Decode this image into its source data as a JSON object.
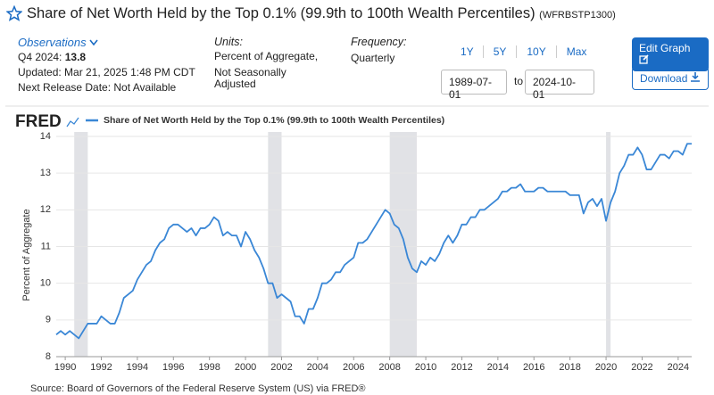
{
  "header": {
    "title": "Share of Net Worth Held by the Top 0.1% (99.9th to 100th Wealth Percentiles)",
    "series_id": "(WFRBSTP1300)"
  },
  "observations": {
    "label": "Observations",
    "latest_label": "Q4 2024:",
    "latest_value": "13.8",
    "updated": "Updated: Mar 21, 2025 1:48 PM CDT",
    "next_release": "Next Release Date: Not Available"
  },
  "units": {
    "label": "Units:",
    "lines": [
      "Percent of Aggregate,",
      "Not Seasonally",
      "Adjusted"
    ]
  },
  "frequency": {
    "label": "Frequency:",
    "value": "Quarterly"
  },
  "range_buttons": [
    "1Y",
    "5Y",
    "10Y",
    "Max"
  ],
  "dates": {
    "start": "1989-07-01",
    "separator": "to",
    "end": "2024-10-01"
  },
  "actions": {
    "edit": "Edit Graph",
    "download": "Download"
  },
  "chart_data": {
    "type": "line",
    "logo": "FRED",
    "y_label": "Percent of Aggregate",
    "source": "Source: Board of Governors of the Federal Reserve System (US) via FRED®",
    "x": [
      1989.5,
      1989.75,
      1990,
      1990.25,
      1990.5,
      1990.75,
      1991,
      1991.25,
      1991.5,
      1991.75,
      1992,
      1992.25,
      1992.5,
      1992.75,
      1993,
      1993.25,
      1993.5,
      1993.75,
      1994,
      1994.25,
      1994.5,
      1994.75,
      1995,
      1995.25,
      1995.5,
      1995.75,
      1996,
      1996.25,
      1996.5,
      1996.75,
      1997,
      1997.25,
      1997.5,
      1997.75,
      1998,
      1998.25,
      1998.5,
      1998.75,
      1999,
      1999.25,
      1999.5,
      1999.75,
      2000,
      2000.25,
      2000.5,
      2000.75,
      2001,
      2001.25,
      2001.5,
      2001.75,
      2002,
      2002.25,
      2002.5,
      2002.75,
      2003,
      2003.25,
      2003.5,
      2003.75,
      2004,
      2004.25,
      2004.5,
      2004.75,
      2005,
      2005.25,
      2005.5,
      2005.75,
      2006,
      2006.25,
      2006.5,
      2006.75,
      2007,
      2007.25,
      2007.5,
      2007.75,
      2008,
      2008.25,
      2008.5,
      2008.75,
      2009,
      2009.25,
      2009.5,
      2009.75,
      2010,
      2010.25,
      2010.5,
      2010.75,
      2011,
      2011.25,
      2011.5,
      2011.75,
      2012,
      2012.25,
      2012.5,
      2012.75,
      2013,
      2013.25,
      2013.5,
      2013.75,
      2014,
      2014.25,
      2014.5,
      2014.75,
      2015,
      2015.25,
      2015.5,
      2015.75,
      2016,
      2016.25,
      2016.5,
      2016.75,
      2017,
      2017.25,
      2017.5,
      2017.75,
      2018,
      2018.25,
      2018.5,
      2018.75,
      2019,
      2019.25,
      2019.5,
      2019.75,
      2020,
      2020.25,
      2020.5,
      2020.75,
      2021,
      2021.25,
      2021.5,
      2021.75,
      2022,
      2022.25,
      2022.5,
      2022.75,
      2023,
      2023.25,
      2023.5,
      2023.75,
      2024,
      2024.25,
      2024.5,
      2024.75
    ],
    "series": [
      {
        "name": "Share of Net Worth Held by the Top 0.1% (99.9th to 100th Wealth Percentiles)",
        "color": "#3a87d6",
        "values": [
          8.6,
          8.7,
          8.6,
          8.7,
          8.6,
          8.5,
          8.7,
          8.9,
          8.9,
          8.9,
          9.1,
          9.0,
          8.9,
          8.9,
          9.2,
          9.6,
          9.7,
          9.8,
          10.1,
          10.3,
          10.5,
          10.6,
          10.9,
          11.1,
          11.2,
          11.5,
          11.6,
          11.6,
          11.5,
          11.4,
          11.5,
          11.3,
          11.5,
          11.5,
          11.6,
          11.8,
          11.7,
          11.3,
          11.4,
          11.3,
          11.3,
          11.0,
          11.4,
          11.2,
          10.9,
          10.7,
          10.4,
          10.0,
          10.0,
          9.6,
          9.7,
          9.6,
          9.5,
          9.1,
          9.1,
          8.9,
          9.3,
          9.3,
          9.6,
          10.0,
          10.0,
          10.1,
          10.3,
          10.3,
          10.5,
          10.6,
          10.7,
          11.1,
          11.1,
          11.2,
          11.4,
          11.6,
          11.8,
          12.0,
          11.9,
          11.6,
          11.5,
          11.2,
          10.7,
          10.4,
          10.3,
          10.6,
          10.5,
          10.7,
          10.6,
          10.8,
          11.1,
          11.3,
          11.1,
          11.3,
          11.6,
          11.6,
          11.8,
          11.8,
          12.0,
          12.0,
          12.1,
          12.2,
          12.3,
          12.5,
          12.5,
          12.6,
          12.6,
          12.7,
          12.5,
          12.5,
          12.5,
          12.6,
          12.6,
          12.5,
          12.5,
          12.5,
          12.5,
          12.5,
          12.4,
          12.4,
          12.4,
          11.9,
          12.2,
          12.3,
          12.1,
          12.3,
          11.7,
          12.2,
          12.5,
          13.0,
          13.2,
          13.5,
          13.5,
          13.7,
          13.5,
          13.1,
          13.1,
          13.3,
          13.5,
          13.5,
          13.4,
          13.6,
          13.6,
          13.5,
          13.8,
          13.8
        ]
      }
    ],
    "xlim": [
      1989.5,
      2024.75
    ],
    "xticks": [
      1990,
      1992,
      1994,
      1996,
      1998,
      2000,
      2002,
      2004,
      2006,
      2008,
      2010,
      2012,
      2014,
      2016,
      2018,
      2020,
      2022,
      2024
    ],
    "ylim": [
      8,
      14
    ],
    "yticks": [
      8,
      9,
      10,
      11,
      12,
      13,
      14
    ],
    "grid": true,
    "recessions": [
      [
        1990.5,
        1991.25
      ],
      [
        2001.25,
        2002.0
      ],
      [
        2008.0,
        2009.5
      ],
      [
        2020.0,
        2020.25
      ]
    ],
    "recession_color": "#e1e2e6"
  }
}
